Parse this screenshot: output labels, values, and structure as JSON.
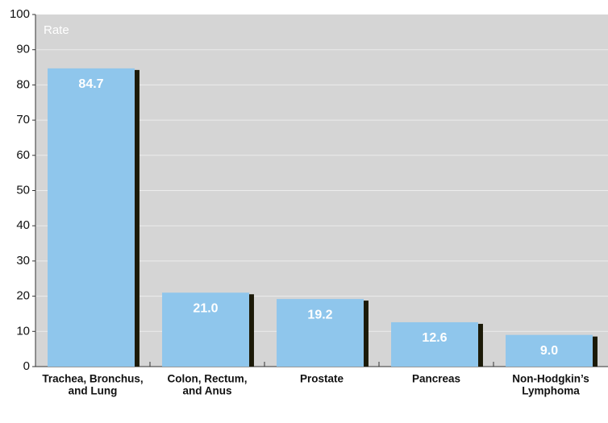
{
  "chart_data": {
    "type": "bar",
    "ylabel": "Rate",
    "categories": [
      [
        "Trachea, Bronchus,",
        "and Lung"
      ],
      [
        "Colon, Rectum,",
        "and Anus"
      ],
      [
        "Prostate"
      ],
      [
        "Pancreas"
      ],
      [
        "Non-Hodgkin’s",
        "Lymphoma"
      ]
    ],
    "values": [
      84.7,
      21.0,
      19.2,
      12.6,
      9.0
    ],
    "value_labels": [
      "84.7",
      "21.0",
      "19.2",
      "12.6",
      "9.0"
    ],
    "color": "#8fc6ec",
    "ylim": [
      0,
      100
    ],
    "yticks": [
      0,
      10,
      20,
      30,
      40,
      50,
      60,
      70,
      80,
      90,
      100
    ],
    "grid": true
  }
}
